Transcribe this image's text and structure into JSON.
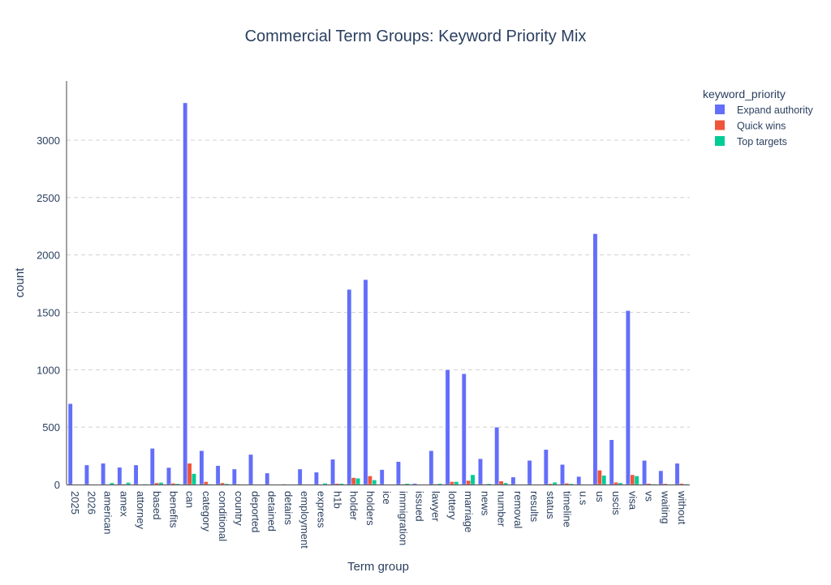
{
  "chart_data": {
    "type": "bar",
    "barmode": "group",
    "title": "Commercial Term Groups: Keyword Priority Mix",
    "xlabel": "Term group",
    "ylabel": "count",
    "ylim": [
      0,
      3515
    ],
    "yticks": [
      0,
      500,
      1000,
      1500,
      2000,
      2500,
      3000
    ],
    "grid": true,
    "legend": {
      "title": "keyword_priority",
      "placement": "top-right"
    },
    "categories": [
      "2025",
      "2026",
      "american",
      "amex",
      "attorney",
      "based",
      "benefits",
      "can",
      "category",
      "conditional",
      "country",
      "deported",
      "detained",
      "detains",
      "employment",
      "express",
      "h1b",
      "holder",
      "holders",
      "ice",
      "immigration",
      "issued",
      "lawyer",
      "lottery",
      "marriage",
      "news",
      "number",
      "removal",
      "results",
      "status",
      "timeline",
      "u.s",
      "us",
      "uscis",
      "visa",
      "vs",
      "waiting",
      "without"
    ],
    "series": [
      {
        "name": "Expand authority",
        "color": "#636efa",
        "values": [
          705,
          170,
          185,
          150,
          170,
          315,
          148,
          3325,
          295,
          165,
          135,
          262,
          100,
          5,
          135,
          108,
          220,
          1700,
          1785,
          130,
          200,
          10,
          295,
          1000,
          965,
          225,
          500,
          65,
          210,
          305,
          175,
          70,
          2185,
          390,
          1515,
          210,
          120,
          185
        ]
      },
      {
        "name": "Quick wins",
        "color": "#ef553b",
        "values": [
          0,
          0,
          3,
          5,
          0,
          15,
          12,
          185,
          25,
          15,
          5,
          2,
          0,
          0,
          3,
          0,
          10,
          60,
          75,
          0,
          5,
          0,
          5,
          25,
          35,
          5,
          30,
          3,
          3,
          8,
          12,
          3,
          125,
          20,
          85,
          10,
          8,
          10
        ]
      },
      {
        "name": "Top targets",
        "color": "#00cc96",
        "values": [
          0,
          0,
          15,
          18,
          5,
          18,
          8,
          95,
          5,
          8,
          0,
          0,
          0,
          0,
          3,
          12,
          10,
          55,
          40,
          0,
          10,
          0,
          10,
          25,
          85,
          8,
          15,
          0,
          0,
          20,
          8,
          3,
          80,
          15,
          75,
          5,
          3,
          5
        ]
      }
    ]
  }
}
